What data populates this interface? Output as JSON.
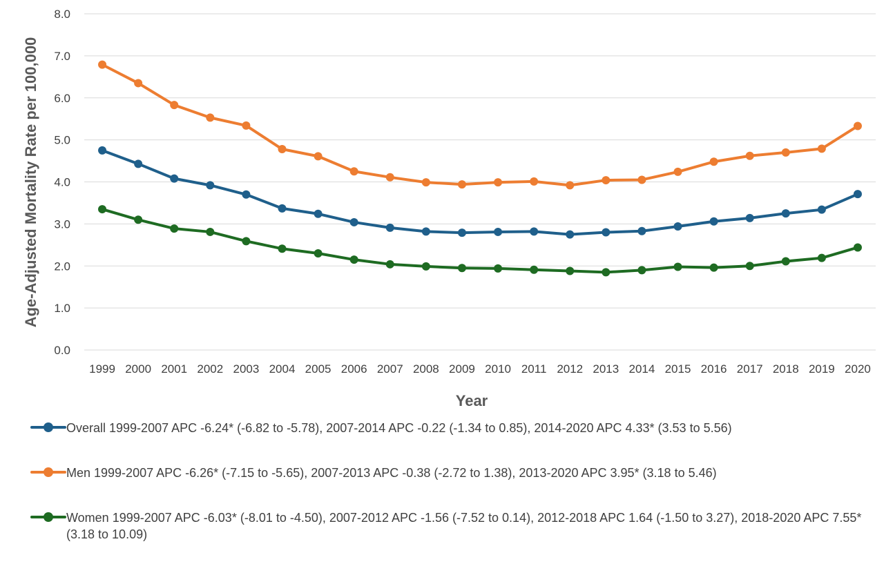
{
  "chart_data": {
    "type": "line",
    "ylabel": "Age-Adjusted Mortality Rate per 100,000",
    "xlabel": "Year",
    "ylim": [
      0,
      8
    ],
    "y_ticks": [
      "0.0",
      "1.0",
      "2.0",
      "3.0",
      "4.0",
      "5.0",
      "6.0",
      "7.0",
      "8.0"
    ],
    "grid": true,
    "legend_position": "bottom",
    "categories": [
      "1999",
      "2000",
      "2001",
      "2002",
      "2003",
      "2004",
      "2005",
      "2006",
      "2007",
      "2008",
      "2009",
      "2010",
      "2011",
      "2012",
      "2013",
      "2014",
      "2015",
      "2016",
      "2017",
      "2018",
      "2019",
      "2020"
    ],
    "series": [
      {
        "name": "Overall 1999-2007 APC -6.24* (-6.82 to -5.78), 2007-2014 APC -0.22 (-1.34 to 0.85), 2014-2020 APC 4.33* (3.53 to 5.56)",
        "color": "#1f5f8b",
        "values": [
          4.75,
          4.43,
          4.08,
          3.92,
          3.7,
          3.37,
          3.24,
          3.04,
          2.91,
          2.82,
          2.79,
          2.81,
          2.82,
          2.75,
          2.8,
          2.83,
          2.94,
          3.06,
          3.14,
          3.25,
          3.34,
          3.71
        ]
      },
      {
        "name": "Men 1999-2007 APC -6.26* (-7.15 to -5.65), 2007-2013 APC -0.38 (-2.72 to 1.38), 2013-2020 APC 3.95* (3.18 to 5.46)",
        "color": "#ed7d31",
        "values": [
          6.79,
          6.35,
          5.83,
          5.53,
          5.34,
          4.78,
          4.61,
          4.25,
          4.11,
          3.99,
          3.94,
          3.99,
          4.01,
          3.92,
          4.04,
          4.05,
          4.24,
          4.48,
          4.62,
          4.7,
          4.79,
          5.33
        ]
      },
      {
        "name": "Women 1999-2007 APC -6.03* (-8.01 to -4.50), 2007-2012 APC -1.56 (-7.52 to 0.14), 2012-2018 APC 1.64 (-1.50 to 3.27), 2018-2020 APC 7.55* (3.18 to 10.09)",
        "color": "#1e6b22",
        "values": [
          3.35,
          3.1,
          2.89,
          2.81,
          2.59,
          2.41,
          2.3,
          2.15,
          2.04,
          1.99,
          1.95,
          1.94,
          1.91,
          1.88,
          1.85,
          1.9,
          1.98,
          1.96,
          2.0,
          2.11,
          2.19,
          2.44
        ]
      }
    ]
  }
}
